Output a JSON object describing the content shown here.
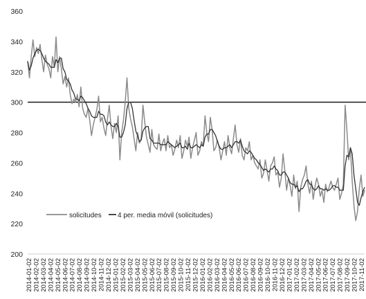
{
  "chart_data": {
    "type": "line",
    "title": "",
    "xlabel": "",
    "ylabel": "",
    "ylim": [
      200,
      360
    ],
    "yticks": [
      200,
      220,
      240,
      260,
      280,
      300,
      320,
      340,
      360
    ],
    "grid": false,
    "legend_position": "bottom-left",
    "x_tick_labels": [
      "2014-01-02",
      "2014-02-02",
      "2014-03-02",
      "2014-04-02",
      "2014-05-02",
      "2014-06-02",
      "2014-07-02",
      "2014-08-02",
      "2014-09-02",
      "2014-10-02",
      "2014-11-02",
      "2014-12-02",
      "2015-01-02",
      "2015-02-02",
      "2015-03-02",
      "2015-04-02",
      "2015-05-02",
      "2015-06-02",
      "2015-07-02",
      "2015-08-02",
      "2015-09-02",
      "2015-10-02",
      "2015-11-02",
      "2015-12-02",
      "2016-01-02",
      "2016-02-02",
      "2016-03-02",
      "2016-04-02",
      "2016-05-02",
      "2016-06-02",
      "2016-07-02",
      "2016-08-02",
      "2016-09-02",
      "2016-10-02",
      "2016-11-02",
      "2016-12-02",
      "2017-01-02",
      "2017-02-02",
      "2017-03-02",
      "2017-04-02",
      "2017-05-02",
      "2017-06-02",
      "2017-07-02",
      "2017-08-02",
      "2017-09-02",
      "2017-10-02",
      "2017-11-02"
    ],
    "reference_line": 300,
    "series": [
      {
        "name": "solicitudes",
        "color": "#8a8a8a",
        "values": [
          327,
          316,
          330,
          341,
          330,
          336,
          332,
          338,
          328,
          320,
          331,
          325,
          322,
          316,
          330,
          323,
          343,
          320,
          330,
          322,
          312,
          317,
          310,
          316,
          305,
          299,
          302,
          300,
          305,
          297,
          310,
          296,
          292,
          290,
          296,
          288,
          278,
          285,
          290,
          295,
          304,
          287,
          290,
          283,
          278,
          289,
          298,
          284,
          276,
          286,
          280,
          291,
          262,
          280,
          288,
          300,
          316,
          296,
          289,
          284,
          276,
          268,
          280,
          273,
          276,
          298,
          287,
          277,
          272,
          267,
          282,
          272,
          270,
          269,
          279,
          268,
          273,
          276,
          268,
          278,
          270,
          272,
          265,
          269,
          275,
          270,
          278,
          263,
          268,
          275,
          271,
          277,
          263,
          270,
          275,
          280,
          265,
          268,
          274,
          271,
          291,
          280,
          274,
          290,
          282,
          268,
          270,
          275,
          270,
          262,
          268,
          274,
          265,
          278,
          270,
          266,
          276,
          285,
          272,
          267,
          276,
          265,
          262,
          270,
          268,
          274,
          262,
          265,
          260,
          258,
          256,
          262,
          250,
          253,
          262,
          255,
          248,
          258,
          260,
          264,
          252,
          254,
          244,
          250,
          266,
          255,
          242,
          250,
          245,
          238,
          252,
          243,
          248,
          228,
          244,
          249,
          252,
          258,
          246,
          240,
          248,
          236,
          244,
          250,
          246,
          238,
          242,
          234,
          246,
          241,
          244,
          248,
          244,
          242,
          246,
          250,
          236,
          240,
          246,
          298,
          282,
          262,
          270,
          248,
          232,
          222,
          228,
          243,
          252,
          238,
          242
        ]
      },
      {
        "name": "4 per. media móvil (solicitudes)",
        "color": "#333333",
        "values": [
          327,
          321,
          324,
          329,
          332,
          334,
          335,
          334,
          332,
          329,
          327,
          326,
          325,
          323,
          323,
          323,
          328,
          326,
          329,
          329,
          322,
          320,
          315,
          314,
          312,
          308,
          306,
          302,
          302,
          301,
          304,
          303,
          301,
          299,
          296,
          294,
          291,
          290,
          290,
          290,
          294,
          292,
          292,
          291,
          287,
          285,
          287,
          285,
          284,
          284,
          286,
          284,
          277,
          277,
          280,
          285,
          296,
          300,
          300,
          296,
          288,
          281,
          278,
          274,
          275,
          281,
          283,
          284,
          284,
          276,
          275,
          273,
          273,
          273,
          273,
          272,
          272,
          272,
          272,
          274,
          273,
          272,
          271,
          270,
          271,
          272,
          273,
          270,
          270,
          271,
          269,
          273,
          270,
          270,
          271,
          272,
          271,
          270,
          272,
          271,
          277,
          279,
          279,
          282,
          282,
          280,
          278,
          274,
          271,
          269,
          269,
          270,
          270,
          271,
          272,
          270,
          272,
          274,
          274,
          273,
          275,
          271,
          268,
          267,
          266,
          268,
          267,
          265,
          263,
          262,
          260,
          259,
          257,
          255,
          256,
          255,
          254,
          256,
          256,
          258,
          256,
          255,
          252,
          252,
          254,
          254,
          252,
          250,
          247,
          246,
          246,
          244,
          245,
          241,
          243,
          243,
          245,
          248,
          249,
          246,
          246,
          243,
          242,
          243,
          245,
          243,
          243,
          242,
          243,
          242,
          242,
          243,
          245,
          245,
          244,
          244,
          242,
          242,
          242,
          258,
          265,
          264,
          270,
          266,
          252,
          243,
          234,
          232,
          237,
          241,
          244
        ]
      }
    ]
  }
}
